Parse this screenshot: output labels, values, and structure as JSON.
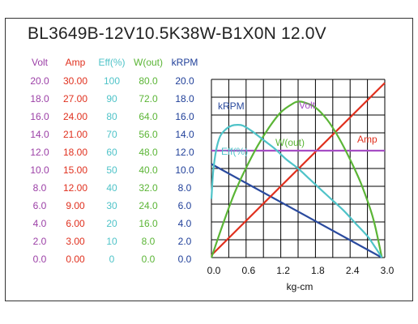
{
  "title": "BL3649B-12V10.5K38W-B1X0N    12.0V",
  "columns": [
    {
      "key": "volt",
      "header": "Volt",
      "color": "#9b3fa6",
      "values": [
        "20.0",
        "18.0",
        "16.0",
        "14.0",
        "12.0",
        "10.0",
        "8.0",
        "6.0",
        "4.0",
        "2.0",
        "0.0"
      ]
    },
    {
      "key": "amp",
      "header": "Amp",
      "color": "#e0301e",
      "values": [
        "30.00",
        "27.00",
        "24.00",
        "21.00",
        "18.00",
        "15.00",
        "12.00",
        "9.00",
        "6.00",
        "3.00",
        "0.00"
      ]
    },
    {
      "key": "eff",
      "header": "Eff(%)",
      "color": "#4fc3c8",
      "values": [
        "100",
        "90",
        "80",
        "70",
        "60",
        "50",
        "40",
        "30",
        "20",
        "10",
        "0"
      ]
    },
    {
      "key": "wout",
      "header": "W(out)",
      "color": "#5bb536",
      "values": [
        "80.0",
        "72.0",
        "64.0",
        "56.0",
        "48.0",
        "40.0",
        "32.0",
        "24.0",
        "16.0",
        "8.0",
        "0.0"
      ]
    },
    {
      "key": "krpm",
      "header": "kRPM",
      "color": "#1f3f99",
      "values": [
        "20.0",
        "18.0",
        "16.0",
        "14.0",
        "12.0",
        "10.0",
        "8.0",
        "6.0",
        "4.0",
        "2.0",
        "0.0"
      ]
    }
  ],
  "chart_data": {
    "type": "line",
    "xlabel": "kg-cm",
    "xlim": [
      0,
      3.0
    ],
    "x_ticks": [
      "0.0",
      "0.6",
      "1.2",
      "1.8",
      "2.4",
      "3.0"
    ],
    "grid": true,
    "series": [
      {
        "name": "kRPM",
        "color": "#2a4a9e",
        "axis_max": 20,
        "points": [
          [
            0,
            10.5
          ],
          [
            2.95,
            0
          ]
        ]
      },
      {
        "name": "Amp",
        "color": "#e0301e",
        "axis_max": 30,
        "points": [
          [
            0,
            0.4
          ],
          [
            3.0,
            29.4
          ]
        ]
      },
      {
        "name": "Volt",
        "color": "#a64dc4",
        "axis_max": 20,
        "points": [
          [
            0,
            12.0
          ],
          [
            3.0,
            12.0
          ]
        ]
      },
      {
        "name": "W(out)",
        "color": "#5bb536",
        "axis_max": 80,
        "points": [
          [
            0,
            0
          ],
          [
            0.2,
            15.1
          ],
          [
            0.4,
            29.0
          ],
          [
            0.6,
            40.3
          ],
          [
            0.8,
            50.2
          ],
          [
            1.0,
            58.5
          ],
          [
            1.2,
            65.2
          ],
          [
            1.4,
            69.0
          ],
          [
            1.5,
            70.0
          ],
          [
            1.6,
            69.7
          ],
          [
            1.8,
            67.4
          ],
          [
            2.0,
            62.0
          ],
          [
            2.2,
            54.0
          ],
          [
            2.4,
            44.0
          ],
          [
            2.6,
            32.5
          ],
          [
            2.8,
            17.5
          ],
          [
            2.95,
            0
          ]
        ]
      },
      {
        "name": "Eff(%)",
        "color": "#4fc3c8",
        "axis_max": 100,
        "points": [
          [
            0,
            33
          ],
          [
            0.03,
            48
          ],
          [
            0.08,
            60
          ],
          [
            0.15,
            68
          ],
          [
            0.25,
            72
          ],
          [
            0.35,
            74
          ],
          [
            0.45,
            74.5
          ],
          [
            0.55,
            74
          ],
          [
            0.7,
            71
          ],
          [
            0.9,
            66
          ],
          [
            1.1,
            61
          ],
          [
            1.3,
            55
          ],
          [
            1.5,
            50
          ],
          [
            1.7,
            44
          ],
          [
            1.9,
            38
          ],
          [
            2.1,
            32
          ],
          [
            2.3,
            26
          ],
          [
            2.5,
            19
          ],
          [
            2.7,
            12
          ],
          [
            2.85,
            5
          ],
          [
            2.95,
            0
          ]
        ]
      }
    ],
    "series_labels": [
      "kRPM",
      "Volt",
      "Eff(%)",
      "W(out)",
      "Amp"
    ]
  }
}
